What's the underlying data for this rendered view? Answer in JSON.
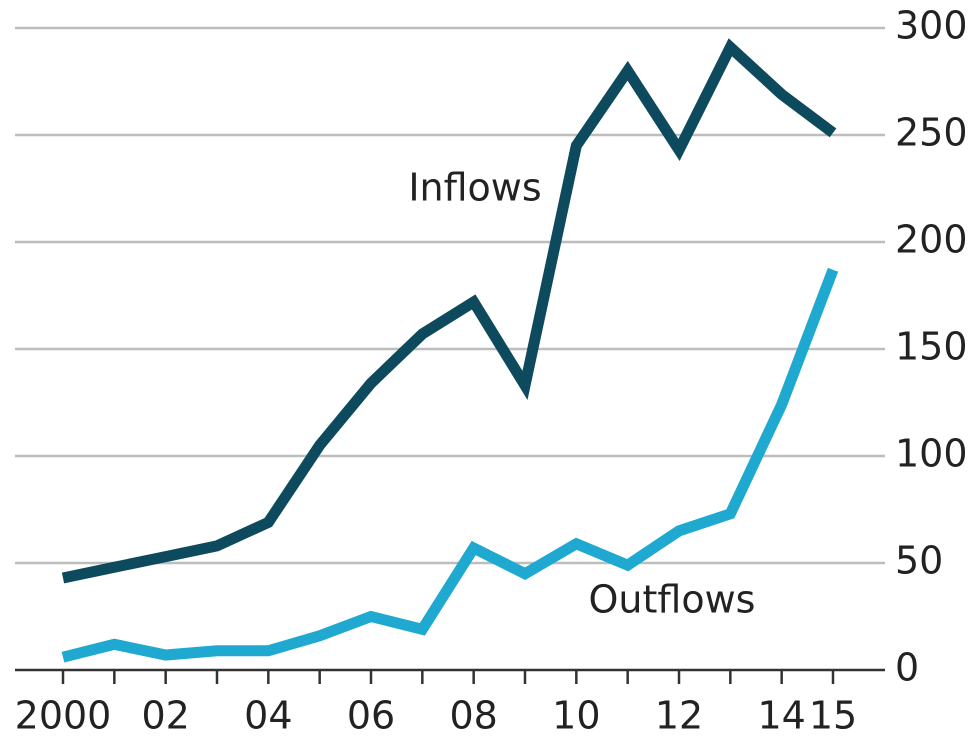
{
  "chart_data": {
    "type": "line",
    "x": [
      2000,
      2001,
      2002,
      2003,
      2004,
      2005,
      2006,
      2007,
      2008,
      2009,
      2010,
      2011,
      2012,
      2013,
      2014,
      2015
    ],
    "series": [
      {
        "name": "Inflows",
        "color": "#0d4a5e",
        "values": [
          43,
          48,
          53,
          58,
          69,
          105,
          134,
          157,
          172,
          133,
          245,
          280,
          243,
          291,
          269,
          251
        ]
      },
      {
        "name": "Outflows",
        "color": "#1fa8d0",
        "values": [
          6,
          12,
          7,
          9,
          9,
          16,
          25,
          19,
          57,
          45,
          59,
          49,
          65,
          73,
          124,
          187
        ]
      }
    ],
    "xlim": [
      2000,
      2015
    ],
    "xticks": [
      {
        "value": 2000,
        "label": "2000"
      },
      {
        "value": 2002,
        "label": "02"
      },
      {
        "value": 2004,
        "label": "04"
      },
      {
        "value": 2006,
        "label": "06"
      },
      {
        "value": 2008,
        "label": "08"
      },
      {
        "value": 2010,
        "label": "10"
      },
      {
        "value": 2012,
        "label": "12"
      },
      {
        "value": 2014,
        "label": "14"
      },
      {
        "value": 2015,
        "label": "15"
      }
    ],
    "ylim": [
      0,
      300
    ],
    "yticks": [
      0,
      50,
      100,
      150,
      200,
      250,
      300
    ],
    "grid": true
  }
}
